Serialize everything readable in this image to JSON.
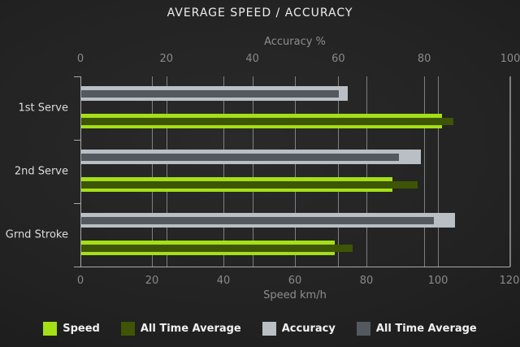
{
  "chart_data": {
    "type": "bar",
    "orientation": "horizontal",
    "title": "AVERAGE SPEED / ACCURACY",
    "categories": [
      "1st Serve",
      "2nd Serve",
      "Grnd Stroke"
    ],
    "series": [
      {
        "name": "Speed",
        "axis": "bottom",
        "color": "#a4e016",
        "values": [
          101,
          87,
          71
        ]
      },
      {
        "name": "All Time Average",
        "axis": "bottom",
        "color": "#3d5505",
        "values": [
          104,
          94,
          76
        ]
      },
      {
        "name": "Accuracy",
        "axis": "top",
        "color": "#b9bfc4",
        "values": [
          62,
          79,
          87
        ]
      },
      {
        "name": "All Time Average",
        "axis": "top",
        "color": "#53595f",
        "values": [
          60,
          74,
          82
        ]
      }
    ],
    "axes": {
      "top": {
        "label": "Accuracy %",
        "min": 0,
        "max": 100,
        "ticks": [
          0,
          20,
          40,
          60,
          80,
          100
        ]
      },
      "bottom": {
        "label": "Speed km/h",
        "min": 0,
        "max": 120,
        "ticks": [
          0,
          20,
          40,
          60,
          80,
          100,
          120
        ]
      }
    },
    "legend": [
      {
        "label": "Speed",
        "color": "#a4e016"
      },
      {
        "label": "All Time Average",
        "color": "#3d5505"
      },
      {
        "label": "Accuracy",
        "color": "#b9bfc4"
      },
      {
        "label": "All Time Average",
        "color": "#53595f"
      }
    ],
    "grid": true,
    "colors": {
      "background": "#222222",
      "gridline": "#8d9091",
      "axis_line": "#a9a9a9",
      "title_text": "#ededed",
      "tick_text": "#8a8a8a",
      "category_text": "#dcdcdc",
      "legend_text": "#f0f0f0"
    }
  }
}
